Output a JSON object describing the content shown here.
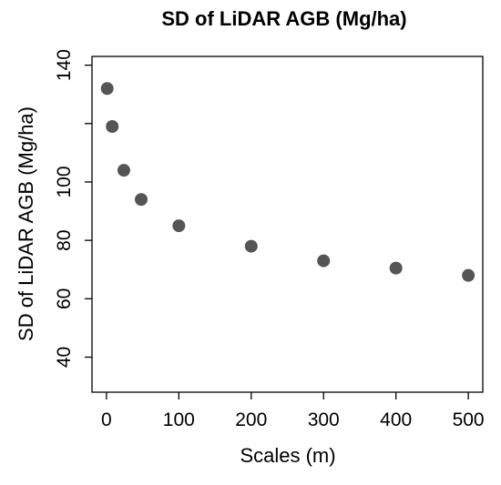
{
  "chart_data": {
    "type": "scatter",
    "title": "SD of LiDAR AGB (Mg/ha)",
    "xlabel": "Scales (m)",
    "ylabel": "SD of LiDAR AGB (Mg/ha)",
    "xlim": [
      -20,
      520
    ],
    "ylim": [
      28,
      143
    ],
    "x_ticks": [
      0,
      100,
      200,
      300,
      400,
      500
    ],
    "x_tick_labels": [
      "0",
      "100",
      "200",
      "300",
      "400",
      "500"
    ],
    "y_ticks": [
      40,
      60,
      80,
      100,
      120,
      140
    ],
    "y_tick_labels": [
      "40",
      "60",
      "80",
      "100",
      "",
      "140"
    ],
    "x": [
      1,
      8,
      24,
      48,
      100,
      200,
      300,
      400,
      500
    ],
    "y": [
      132,
      119,
      104,
      94,
      85,
      78,
      73,
      70.5,
      68
    ],
    "point_color": "#555555",
    "grid": false
  }
}
